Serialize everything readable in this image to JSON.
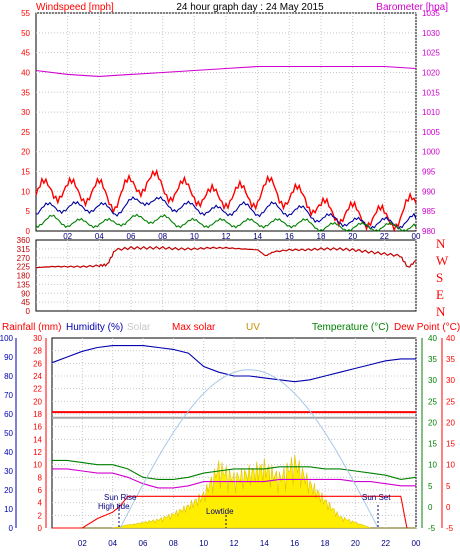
{
  "colors": {
    "wind": "#ff0000",
    "gust": "#ff0000",
    "avgwind": "#0000a0",
    "calm": "#008000",
    "baro": "#d000d0",
    "dir": "#c00000",
    "rain": "#ff0000",
    "humidity": "#0000b0",
    "solar": "#ffee00",
    "maxsolar": "#a8c8e8",
    "uv": "#c89000",
    "temp": "#008000",
    "dew": "#ff0000",
    "tempaxis": "#008000",
    "dewaxis": "#ff0000",
    "gridline": "#c8c8c8",
    "tide": "#000080"
  },
  "chart_data": [
    {
      "type": "line",
      "title": "24 hour graph day : 24 May 2015",
      "left_label": "Windspeed [mph]",
      "right_label": "Barometer [hpa]",
      "y_left": {
        "min": 0,
        "max": 55,
        "ticks": [
          "0",
          "5",
          "10",
          "15",
          "20",
          "25",
          "30",
          "35",
          "40",
          "45",
          "50",
          "55"
        ]
      },
      "y_right": {
        "min": 980,
        "max": 1035,
        "ticks": [
          "980",
          "985",
          "990",
          "995",
          "1000",
          "1005",
          "1010",
          "1015",
          "1020",
          "1025",
          "1030",
          "1035"
        ]
      },
      "x_ticks": [
        "02",
        "04",
        "06",
        "08",
        "10",
        "12",
        "14",
        "16",
        "18",
        "20",
        "22",
        "00"
      ],
      "x_range_hours": [
        0,
        24
      ],
      "series": [
        {
          "name": "gust",
          "color": "wind",
          "axis": "left",
          "x": [
            0,
            1,
            2,
            3,
            4,
            5,
            6,
            7,
            8,
            9,
            10,
            11,
            12,
            13,
            14,
            15,
            16,
            17,
            18,
            19,
            20,
            21,
            22,
            23,
            24
          ],
          "values": [
            9,
            11,
            10,
            10,
            10,
            8,
            11,
            13,
            11,
            10,
            10,
            8,
            9,
            9,
            9,
            11,
            8,
            9,
            5,
            5,
            4,
            4,
            3,
            4,
            7
          ]
        },
        {
          "name": "avg",
          "color": "avgwind",
          "axis": "left",
          "x": [
            0,
            1,
            2,
            3,
            4,
            5,
            6,
            7,
            8,
            9,
            10,
            11,
            12,
            13,
            14,
            15,
            16,
            17,
            18,
            19,
            20,
            21,
            22,
            23,
            24
          ],
          "values": [
            5,
            6,
            6,
            6,
            6,
            5,
            7,
            8,
            7,
            6,
            6,
            5,
            5,
            6,
            5,
            6,
            5,
            5,
            3,
            3,
            2,
            2,
            2,
            2,
            3
          ]
        },
        {
          "name": "low",
          "color": "calm",
          "axis": "left",
          "x": [
            0,
            1,
            2,
            3,
            4,
            5,
            6,
            7,
            8,
            9,
            10,
            11,
            12,
            13,
            14,
            15,
            16,
            17,
            18,
            19,
            20,
            21,
            22,
            23,
            24
          ],
          "values": [
            2,
            3,
            2,
            2,
            2,
            2,
            3,
            3,
            3,
            2,
            2,
            2,
            2,
            2,
            2,
            2,
            2,
            2,
            1,
            1,
            1,
            1,
            1,
            1,
            1
          ]
        },
        {
          "name": "barometer",
          "color": "baro",
          "axis": "right",
          "x": [
            0,
            2,
            4,
            6,
            8,
            10,
            12,
            14,
            16,
            18,
            20,
            22,
            24
          ],
          "values": [
            1020.5,
            1019.5,
            1019,
            1019.5,
            1020,
            1020.5,
            1021,
            1021.5,
            1021.5,
            1021.5,
            1021.5,
            1021.5,
            1021
          ]
        }
      ]
    },
    {
      "type": "line",
      "title": "",
      "y_left": {
        "min": 0,
        "max": 360,
        "ticks": [
          "0",
          "45",
          "90",
          "135",
          "180",
          "225",
          "270",
          "315",
          "360"
        ]
      },
      "right_letters": [
        "N",
        "W",
        "S",
        "E",
        "N"
      ],
      "series": [
        {
          "name": "direction",
          "color": "dir",
          "x": [
            0,
            1,
            2,
            3,
            4,
            4.5,
            5,
            6,
            7,
            8,
            9,
            10,
            11,
            12,
            13,
            14,
            14.5,
            15,
            16,
            17,
            18,
            19,
            20,
            21,
            22,
            23,
            23.5,
            24
          ],
          "values": [
            220,
            225,
            225,
            225,
            230,
            235,
            310,
            320,
            320,
            320,
            315,
            315,
            320,
            320,
            315,
            310,
            280,
            300,
            310,
            310,
            315,
            315,
            310,
            300,
            290,
            280,
            220,
            255
          ]
        }
      ]
    },
    {
      "type": "line",
      "legend": [
        "Rainfall (mm)",
        "Humidity (%)",
        "Solar",
        "Max solar",
        "UV",
        "Temperature (°C)",
        "Dew Point (°C)"
      ],
      "axis_left1": {
        "label": "Rainfall (mm)",
        "min": 0,
        "max": 30,
        "ticks": [
          "0",
          "2",
          "4",
          "6",
          "8",
          "10",
          "12",
          "14",
          "16",
          "18",
          "20",
          "22",
          "24",
          "26",
          "28",
          "30"
        ]
      },
      "axis_left2": {
        "label": "Humidity (%)",
        "min": 0,
        "max": 100,
        "ticks": [
          "0",
          "10",
          "20",
          "30",
          "40",
          "50",
          "60",
          "70",
          "80",
          "90",
          "100"
        ]
      },
      "axis_right": {
        "min": -5,
        "max": 40,
        "ticks": [
          "-5",
          "0",
          "5",
          "10",
          "15",
          "20",
          "25",
          "30",
          "35",
          "40"
        ]
      },
      "series": [
        {
          "name": "Humidity (%)",
          "color": "humidity",
          "axis": "humidity",
          "x": [
            0,
            1,
            2,
            3,
            4,
            5,
            6,
            7,
            8,
            9,
            10,
            11,
            12,
            13,
            14,
            15,
            16,
            17,
            18,
            19,
            20,
            21,
            22,
            23,
            24
          ],
          "values": [
            87,
            90,
            93,
            95,
            96,
            96,
            96,
            95,
            94,
            92,
            85,
            82,
            80,
            80,
            79,
            78,
            77,
            78,
            80,
            82,
            84,
            86,
            88,
            89,
            89
          ]
        },
        {
          "name": "Max solar",
          "color": "rain",
          "axis": "humidity",
          "x": [
            0,
            24
          ],
          "values": [
            61,
            61
          ]
        },
        {
          "name": "UV",
          "color": "uv",
          "axis": "humidity",
          "x": [
            0,
            24
          ],
          "values": [
            58,
            58
          ]
        },
        {
          "name": "Temperature (°C)",
          "color": "temp",
          "axis": "right",
          "x": [
            0,
            1,
            2,
            3,
            4,
            5,
            6,
            7,
            8,
            9,
            10,
            11,
            12,
            13,
            14,
            15,
            16,
            17,
            18,
            19,
            20,
            21,
            22,
            23,
            24
          ],
          "values": [
            11,
            11,
            10.5,
            10,
            10,
            9,
            7,
            6.5,
            6.5,
            7,
            8,
            8.5,
            9,
            9,
            9,
            9.5,
            9.5,
            9.5,
            9,
            9,
            8.5,
            8,
            7.5,
            6.5,
            7
          ]
        },
        {
          "name": "Dew Point (°C)",
          "color": "baro",
          "axis": "right",
          "x": [
            0,
            1,
            2,
            3,
            4,
            5,
            6,
            7,
            8,
            9,
            10,
            11,
            12,
            13,
            14,
            15,
            16,
            17,
            18,
            19,
            20,
            21,
            22,
            23,
            24
          ],
          "values": [
            9,
            9,
            8.5,
            8,
            8,
            7,
            5.5,
            4.5,
            4.5,
            5,
            6,
            6,
            6,
            6,
            6,
            6.5,
            6.5,
            6.5,
            6.5,
            6.5,
            6,
            6,
            5.5,
            5,
            5
          ]
        },
        {
          "name": "Solar",
          "color": "solar",
          "axis": "rain",
          "x": [
            0,
            4,
            5,
            6,
            7,
            8,
            9,
            10,
            11,
            12,
            13,
            14,
            15,
            16,
            17,
            18,
            19,
            20,
            21,
            24
          ],
          "values": [
            0,
            0,
            0.5,
            1,
            1.5,
            2.5,
            4,
            6,
            11,
            9,
            10,
            11,
            9,
            12,
            8,
            5,
            2,
            1,
            0,
            0
          ]
        },
        {
          "name": "Max solar curve",
          "color": "maxsolar",
          "axis": "rain",
          "x": [
            4.5,
            6,
            8,
            10,
            12,
            13,
            14,
            16,
            18,
            20,
            21.5
          ],
          "values": [
            0,
            3,
            11,
            19,
            24,
            25,
            24,
            19,
            11,
            3,
            0
          ]
        },
        {
          "name": "Rainfall (mm)",
          "color": "rain",
          "axis": "rain",
          "x": [
            0,
            1,
            2,
            3,
            4,
            4.5,
            5,
            11,
            23,
            23.4
          ],
          "values": [
            0,
            0,
            0,
            1.5,
            2.5,
            3.5,
            5,
            5,
            5,
            0
          ]
        }
      ]
    }
  ],
  "texts": {
    "sun_rise": "Sun Rise",
    "high_tide": "High tide",
    "low_tide": "Lowtide",
    "sun_set": "Sun Set"
  }
}
